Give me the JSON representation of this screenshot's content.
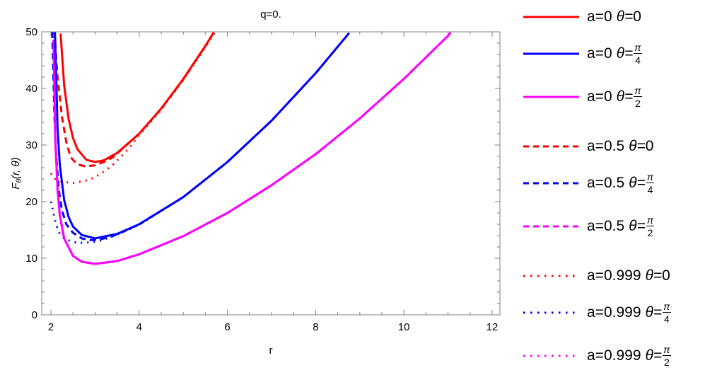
{
  "chart_data": {
    "type": "line",
    "title": "q=0.",
    "xlabel": "r",
    "ylabel": "F_θ(r, θ)",
    "xlim": [
      1.79,
      12.2
    ],
    "ylim": [
      0,
      50
    ],
    "xticks": [
      2,
      4,
      6,
      8,
      10,
      12
    ],
    "yticks": [
      0,
      10,
      20,
      30,
      40,
      50
    ],
    "grid": false,
    "legend_position": "right",
    "series": [
      {
        "name": "a=0 θ=0",
        "a": "0",
        "theta": "0",
        "color": "#ff0000",
        "style": "solid",
        "points": [
          [
            2.22,
            49.7
          ],
          [
            2.3,
            40.6
          ],
          [
            2.4,
            34.6
          ],
          [
            2.5,
            31.25
          ],
          [
            2.6,
            29.3
          ],
          [
            2.8,
            27.4
          ],
          [
            3.0,
            27.0
          ],
          [
            3.2,
            27.3
          ],
          [
            3.5,
            28.6
          ],
          [
            4.0,
            32.0
          ],
          [
            4.5,
            36.45
          ],
          [
            5.0,
            41.67
          ],
          [
            5.5,
            47.5
          ],
          [
            5.69,
            49.9
          ]
        ]
      },
      {
        "name": "a=0 θ=π/4",
        "a": "0",
        "theta": "π/4",
        "color": "#0000ff",
        "style": "solid",
        "points": [
          [
            2.092,
            50.0
          ],
          [
            2.12,
            42.0
          ],
          [
            2.15,
            33.0
          ],
          [
            2.2,
            26.6
          ],
          [
            2.3,
            20.3
          ],
          [
            2.4,
            17.3
          ],
          [
            2.5,
            15.6
          ],
          [
            2.7,
            14.1
          ],
          [
            3.0,
            13.5
          ],
          [
            3.5,
            14.3
          ],
          [
            4.0,
            16.0
          ],
          [
            5.0,
            20.8
          ],
          [
            6.0,
            27.0
          ],
          [
            7.0,
            34.3
          ],
          [
            8.0,
            42.7
          ],
          [
            8.76,
            49.8
          ]
        ]
      },
      {
        "name": "a=0 θ=π/2",
        "a": "0",
        "theta": "π/2",
        "color": "#ff00ff",
        "style": "solid",
        "points": [
          [
            2.06,
            48.6
          ],
          [
            2.1,
            30.9
          ],
          [
            2.15,
            22.1
          ],
          [
            2.2,
            17.7
          ],
          [
            2.3,
            13.5
          ],
          [
            2.5,
            10.4
          ],
          [
            2.7,
            9.37
          ],
          [
            3.0,
            9.0
          ],
          [
            3.5,
            9.5
          ],
          [
            4.0,
            10.7
          ],
          [
            5.0,
            13.9
          ],
          [
            6.0,
            18.0
          ],
          [
            7.0,
            22.9
          ],
          [
            8.0,
            28.4
          ],
          [
            9.0,
            34.7
          ],
          [
            10.0,
            41.7
          ],
          [
            11.0,
            49.3
          ],
          [
            11.06,
            49.9
          ]
        ]
      },
      {
        "name": "a=0.5 θ=0",
        "a": "0.5",
        "theta": "0",
        "color": "#ff0000",
        "style": "dashed",
        "points": [
          [
            2.08,
            50.0
          ],
          [
            2.15,
            42.0
          ],
          [
            2.25,
            35.0
          ],
          [
            2.35,
            30.5
          ],
          [
            2.45,
            27.8
          ],
          [
            2.6,
            26.6
          ],
          [
            2.77,
            26.25
          ],
          [
            3.0,
            26.4
          ],
          [
            3.2,
            27.0
          ],
          [
            3.4,
            27.8
          ],
          [
            3.6,
            29.2
          ],
          [
            4.0,
            32.0
          ],
          [
            4.5,
            36.4
          ],
          [
            5.0,
            41.6
          ],
          [
            5.5,
            47.5
          ],
          [
            5.7,
            50.0
          ]
        ]
      },
      {
        "name": "a=0.5 θ=π/4",
        "a": "0.5",
        "theta": "π/4",
        "color": "#0000ff",
        "style": "dashed",
        "points": [
          [
            2.03,
            50.0
          ],
          [
            2.08,
            35.0
          ],
          [
            2.12,
            28.0
          ],
          [
            2.18,
            22.0
          ],
          [
            2.25,
            18.5
          ],
          [
            2.35,
            16.0
          ],
          [
            2.5,
            14.5
          ],
          [
            2.7,
            13.5
          ],
          [
            2.9,
            13.2
          ],
          [
            3.1,
            13.3
          ],
          [
            3.4,
            13.9
          ],
          [
            3.7,
            14.9
          ],
          [
            4.0,
            16.0
          ],
          [
            5.0,
            20.8
          ],
          [
            6.0,
            27.0
          ],
          [
            7.0,
            34.3
          ],
          [
            8.0,
            42.7
          ],
          [
            8.76,
            49.8
          ]
        ]
      },
      {
        "name": "a=0.5 θ=π/2",
        "a": "0.5",
        "theta": "π/2",
        "color": "#ff00ff",
        "style": "dashed",
        "points": [
          [
            2.06,
            48.6
          ],
          [
            2.1,
            30.9
          ],
          [
            2.15,
            22.1
          ],
          [
            2.2,
            17.7
          ],
          [
            2.3,
            13.5
          ],
          [
            2.5,
            10.4
          ],
          [
            2.7,
            9.37
          ],
          [
            3.0,
            9.0
          ],
          [
            3.5,
            9.5
          ],
          [
            4.0,
            10.7
          ],
          [
            5.0,
            13.9
          ],
          [
            6.0,
            18.0
          ],
          [
            7.0,
            22.9
          ],
          [
            8.0,
            28.4
          ],
          [
            9.0,
            34.7
          ],
          [
            10.0,
            41.7
          ],
          [
            11.0,
            49.3
          ],
          [
            11.06,
            49.9
          ]
        ]
      },
      {
        "name": "a=0.999 θ=0",
        "a": "0.999",
        "theta": "0",
        "color": "#ff0000",
        "style": "dotted",
        "points": [
          [
            2.0,
            25.0
          ],
          [
            2.1,
            24.0
          ],
          [
            2.25,
            23.5
          ],
          [
            2.5,
            23.3
          ],
          [
            2.75,
            23.6
          ],
          [
            3.0,
            24.3
          ],
          [
            3.2,
            25.3
          ],
          [
            3.4,
            26.5
          ],
          [
            3.6,
            28.0
          ],
          [
            3.8,
            29.7
          ],
          [
            4.0,
            31.7
          ],
          [
            4.5,
            36.2
          ],
          [
            5.0,
            41.5
          ],
          [
            5.5,
            47.3
          ],
          [
            5.72,
            50.0
          ]
        ]
      },
      {
        "name": "a=0.999 θ=π/4",
        "a": "0.999",
        "theta": "π/4",
        "color": "#0000ff",
        "style": "dotted",
        "points": [
          [
            2.0,
            20.0
          ],
          [
            2.05,
            18.3
          ],
          [
            2.1,
            16.5
          ],
          [
            2.15,
            15.2
          ],
          [
            2.2,
            14.3
          ],
          [
            2.3,
            13.5
          ],
          [
            2.45,
            13.0
          ],
          [
            2.6,
            12.7
          ],
          [
            2.8,
            12.75
          ],
          [
            3.0,
            12.9
          ],
          [
            3.2,
            13.3
          ],
          [
            3.5,
            14.2
          ],
          [
            4.0,
            15.9
          ],
          [
            5.0,
            20.8
          ],
          [
            6.0,
            27.0
          ],
          [
            7.0,
            34.3
          ],
          [
            8.0,
            42.7
          ],
          [
            8.76,
            49.8
          ]
        ]
      },
      {
        "name": "a=0.999 θ=π/2",
        "a": "0.999",
        "theta": "π/2",
        "color": "#ff00ff",
        "style": "dotted",
        "points": [
          [
            2.06,
            48.6
          ],
          [
            2.1,
            30.9
          ],
          [
            2.15,
            22.1
          ],
          [
            2.2,
            17.7
          ],
          [
            2.3,
            13.5
          ],
          [
            2.5,
            10.4
          ],
          [
            2.7,
            9.37
          ],
          [
            3.0,
            9.0
          ],
          [
            3.5,
            9.5
          ],
          [
            4.0,
            10.7
          ],
          [
            5.0,
            13.9
          ],
          [
            6.0,
            18.0
          ],
          [
            7.0,
            22.9
          ],
          [
            8.0,
            28.4
          ],
          [
            9.0,
            34.7
          ],
          [
            10.0,
            41.7
          ],
          [
            11.0,
            49.3
          ],
          [
            11.06,
            49.9
          ]
        ]
      }
    ]
  },
  "legend": {
    "items": [
      {
        "a_label": "a=0",
        "theta_symbol": "θ=",
        "theta_value": "0",
        "frac_num": "",
        "frac_den": ""
      },
      {
        "a_label": "a=0",
        "theta_symbol": "θ=",
        "theta_value": "",
        "frac_num": "π",
        "frac_den": "4"
      },
      {
        "a_label": "a=0",
        "theta_symbol": "θ=",
        "theta_value": "",
        "frac_num": "π",
        "frac_den": "2"
      },
      {
        "a_label": "a=0.5",
        "theta_symbol": "θ=",
        "theta_value": "0",
        "frac_num": "",
        "frac_den": ""
      },
      {
        "a_label": "a=0.5",
        "theta_symbol": "θ=",
        "theta_value": "",
        "frac_num": "π",
        "frac_den": "4"
      },
      {
        "a_label": "a=0.5",
        "theta_symbol": "θ=",
        "theta_value": "",
        "frac_num": "π",
        "frac_den": "2"
      },
      {
        "a_label": "a=0.999",
        "theta_symbol": "θ=",
        "theta_value": "0",
        "frac_num": "",
        "frac_den": ""
      },
      {
        "a_label": "a=0.999",
        "theta_symbol": "θ=",
        "theta_value": "",
        "frac_num": "π",
        "frac_den": "4"
      },
      {
        "a_label": "a=0.999",
        "theta_symbol": "θ=",
        "theta_value": "",
        "frac_num": "π",
        "frac_den": "2"
      }
    ]
  },
  "axes": {
    "title": "q=0.",
    "xlabel": "r",
    "ylabel_main": "F",
    "ylabel_sub": "θ",
    "ylabel_args": "(r, θ)"
  }
}
